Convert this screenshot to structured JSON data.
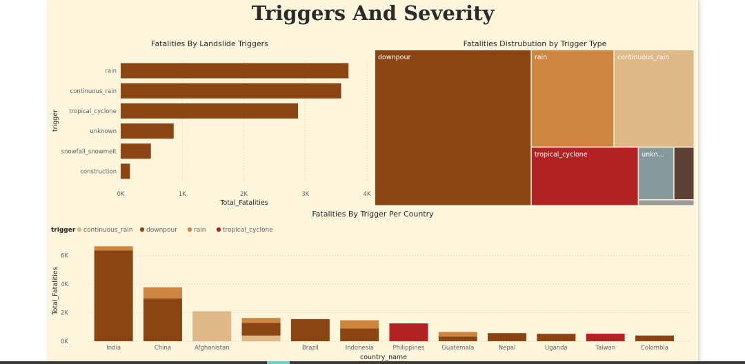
{
  "page": {
    "title": "Triggers And Severity"
  },
  "colors": {
    "downpour": "#8b4513",
    "rain": "#cd853f",
    "continuous_rain": "#deb887",
    "tropical_cyclone": "#b22222",
    "unknown": "#86989b",
    "snowfall_snowmelt": "#5c4033",
    "construction": "#9a9a9a",
    "grid": "#e8dfc4",
    "axis_text": "#605e5c"
  },
  "chart_data": [
    {
      "id": "bar",
      "type": "bar",
      "orientation": "horizontal",
      "title": "Fatalities By Landslide Triggers",
      "ylabel": "trigger",
      "xlabel": "Total_Fatalities",
      "categories": [
        "rain",
        "continuous_rain",
        "tropical_cyclone",
        "unknown",
        "snowfall_snowmelt",
        "construction"
      ],
      "values": [
        3700,
        3580,
        2880,
        860,
        490,
        150
      ],
      "xlim": [
        0,
        4000
      ],
      "xticks": [
        0,
        1000,
        2000,
        3000,
        4000
      ],
      "xtick_labels": [
        "0K",
        "1K",
        "2K",
        "3K",
        "4K"
      ],
      "grid": true
    },
    {
      "id": "treemap",
      "type": "treemap",
      "title": "Fatalities Distrubution by Trigger Type",
      "items": [
        {
          "label": "downpour",
          "key": "downpour",
          "value": 11200
        },
        {
          "label": "rain",
          "key": "rain",
          "value": 3700
        },
        {
          "label": "continuous_rain",
          "key": "continuous_rain",
          "value": 3580
        },
        {
          "label": "tropical_cyclone",
          "key": "tropical_cyclone",
          "value": 2880
        },
        {
          "label": "unkn...",
          "key": "unknown",
          "value": 860
        },
        {
          "label": "",
          "key": "snowfall_snowmelt",
          "value": 490
        },
        {
          "label": "",
          "key": "construction",
          "value": 150
        }
      ]
    },
    {
      "id": "stacked",
      "type": "bar",
      "stacked": true,
      "title": "Fatalities By Trigger Per Country",
      "xlabel": "country_name",
      "ylabel": "Total_Fatalities",
      "legend": {
        "title": "trigger",
        "position": "top-left"
      },
      "categories": [
        "India",
        "China",
        "Afghanistan",
        "",
        "Brazil",
        "Indonesia",
        "Philippines",
        "Guatemala",
        "Nepal",
        "Uganda",
        "Taiwan",
        "Colombia"
      ],
      "series": [
        {
          "name": "continuous_rain",
          "key": "continuous_rain",
          "values": [
            0,
            0,
            2100,
            400,
            0,
            0,
            0,
            0,
            0,
            0,
            0,
            0
          ]
        },
        {
          "name": "downpour",
          "key": "downpour",
          "values": [
            6350,
            3000,
            0,
            880,
            1550,
            900,
            0,
            330,
            570,
            520,
            0,
            400
          ]
        },
        {
          "name": "rain",
          "key": "rain",
          "values": [
            300,
            780,
            0,
            350,
            0,
            570,
            0,
            320,
            0,
            0,
            0,
            0
          ]
        },
        {
          "name": "tropical_cyclone",
          "key": "tropical_cyclone",
          "values": [
            0,
            0,
            0,
            0,
            0,
            0,
            1250,
            0,
            0,
            0,
            530,
            0
          ]
        }
      ],
      "ylim": [
        0,
        7000
      ],
      "yticks": [
        0,
        2000,
        4000,
        6000
      ],
      "ytick_labels": [
        "0K",
        "2K",
        "4K",
        "6K"
      ],
      "grid": true
    }
  ]
}
